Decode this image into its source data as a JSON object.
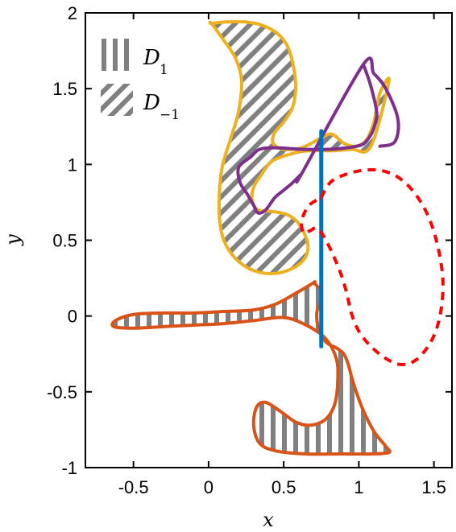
{
  "chart_data": {
    "type": "line",
    "xlabel": "x",
    "ylabel": "y",
    "xlim": [
      -0.82,
      1.62
    ],
    "ylim": [
      -1,
      2
    ],
    "xticks": [
      -0.5,
      0,
      0.5,
      1,
      1.5
    ],
    "xtick_labels": [
      "-0.5",
      "0",
      "0.5",
      "1",
      "1.5"
    ],
    "yticks": [
      -1,
      -0.5,
      0,
      0.5,
      1,
      1.5,
      2
    ],
    "ytick_labels": [
      "-1",
      "-0.5",
      "0",
      "0.5",
      "1",
      "1.5",
      "2"
    ],
    "grid": false,
    "legend_position": "top-left",
    "legend": [
      {
        "label": "D",
        "sub": "1",
        "hatch": "vertical"
      },
      {
        "label": "D",
        "sub": "−1",
        "hatch": "diagonal"
      }
    ],
    "colors": {
      "yellow": "#EDB120",
      "orange": "#D95319",
      "purple": "#7E2F8E",
      "blue": "#0072BD",
      "red": "#FF0000",
      "hatch": "#808080"
    },
    "series": [
      {
        "color": "yellow",
        "fill_hatch": "diagonal",
        "x": [
          0.02,
          0.12,
          0.24,
          0.35,
          0.45,
          0.52,
          0.56,
          0.58,
          0.56,
          0.5,
          0.44,
          0.43,
          0.5,
          0.62,
          0.74,
          0.82,
          0.9,
          0.98,
          1.05,
          1.1,
          1.14,
          1.2,
          1.08,
          0.95,
          0.8,
          0.66,
          0.55,
          0.42,
          0.35,
          0.3,
          0.29,
          0.33,
          0.42,
          0.52,
          0.6,
          0.66,
          0.64,
          0.55,
          0.42,
          0.3,
          0.2,
          0.12,
          0.08,
          0.07,
          0.09,
          0.15,
          0.2,
          0.22,
          0.18,
          0.1,
          0.02
        ],
        "y": [
          1.93,
          1.94,
          1.94,
          1.92,
          1.87,
          1.79,
          1.67,
          1.52,
          1.38,
          1.28,
          1.21,
          1.14,
          1.1,
          1.11,
          1.17,
          1.2,
          1.14,
          1.12,
          1.16,
          1.28,
          1.47,
          1.55,
          1.12,
          1.1,
          1.09,
          1.09,
          1.07,
          1.02,
          0.93,
          0.85,
          0.76,
          0.7,
          0.69,
          0.67,
          0.61,
          0.48,
          0.38,
          0.31,
          0.28,
          0.3,
          0.36,
          0.46,
          0.58,
          0.76,
          0.98,
          1.18,
          1.35,
          1.55,
          1.7,
          1.82,
          1.93
        ]
      },
      {
        "color": "orange",
        "fill_hatch": "vertical",
        "x": [
          0.7,
          0.58,
          0.45,
          0.3,
          0.1,
          -0.1,
          -0.3,
          -0.5,
          -0.62,
          -0.63,
          -0.5,
          -0.3,
          -0.1,
          0.1,
          0.3,
          0.5,
          0.65,
          0.78,
          0.85,
          0.86,
          0.84,
          0.78,
          0.68,
          0.58,
          0.48,
          0.38,
          0.32,
          0.3,
          0.34,
          0.45,
          0.65,
          0.88,
          1.08,
          1.2,
          1.18,
          1.1,
          1.02,
          0.96,
          0.93,
          0.9,
          0.85,
          0.78,
          0.73,
          0.72,
          0.74,
          0.75,
          0.72,
          0.7
        ],
        "y": [
          0.22,
          0.15,
          0.08,
          0.04,
          0.03,
          0.02,
          0.02,
          0.01,
          -0.03,
          -0.07,
          -0.08,
          -0.07,
          -0.06,
          -0.05,
          -0.03,
          -0.01,
          -0.06,
          -0.15,
          -0.28,
          -0.42,
          -0.58,
          -0.68,
          -0.72,
          -0.7,
          -0.63,
          -0.57,
          -0.6,
          -0.72,
          -0.84,
          -0.89,
          -0.91,
          -0.91,
          -0.91,
          -0.9,
          -0.86,
          -0.76,
          -0.6,
          -0.43,
          -0.32,
          -0.25,
          -0.21,
          -0.17,
          -0.07,
          0.02,
          0.08,
          0.16,
          0.2,
          0.22
        ]
      },
      {
        "color": "purple",
        "fill_hatch": "none",
        "x": [
          1.03,
          1.07,
          1.1,
          1.12,
          1.1,
          1.07,
          1.02,
          0.92,
          0.8,
          0.62,
          0.45,
          0.34,
          0.28,
          0.2,
          0.21,
          0.26,
          0.3,
          0.33,
          0.38,
          0.44,
          0.5,
          0.56,
          0.59,
          0.61,
          0.62,
          1.03,
          1.1,
          1.18,
          1.26,
          1.24,
          1.14
        ],
        "y": [
          1.66,
          1.55,
          1.44,
          1.33,
          1.24,
          1.18,
          1.13,
          1.11,
          1.1,
          1.1,
          1.11,
          1.1,
          1.05,
          0.98,
          0.88,
          0.8,
          0.73,
          0.68,
          0.7,
          0.78,
          0.83,
          0.88,
          0.91,
          0.93,
          0.94,
          1.66,
          1.6,
          1.5,
          1.3,
          1.15,
          1.12
        ]
      },
      {
        "color": "blue",
        "fill_hatch": "none",
        "x": [
          0.75,
          0.75
        ],
        "y": [
          1.22,
          -0.2
        ]
      },
      {
        "color": "red",
        "fill_hatch": "none",
        "dashed": true,
        "x": [
          0.75,
          0.78,
          0.82,
          0.9,
          1.02,
          1.15,
          1.27,
          1.38,
          1.47,
          1.53,
          1.56,
          1.54,
          1.48,
          1.38,
          1.28,
          1.18,
          1.08,
          1.0,
          0.95,
          0.92,
          0.88,
          0.83,
          0.77,
          0.72,
          0.67,
          0.63,
          0.62,
          0.66,
          0.71,
          0.75
        ],
        "y": [
          0.78,
          0.84,
          0.89,
          0.93,
          0.96,
          0.96,
          0.91,
          0.8,
          0.64,
          0.44,
          0.22,
          0.0,
          -0.17,
          -0.29,
          -0.32,
          -0.28,
          -0.2,
          -0.1,
          0.02,
          0.15,
          0.28,
          0.4,
          0.52,
          0.58,
          0.56,
          0.55,
          0.63,
          0.72,
          0.76,
          0.78
        ]
      }
    ]
  }
}
